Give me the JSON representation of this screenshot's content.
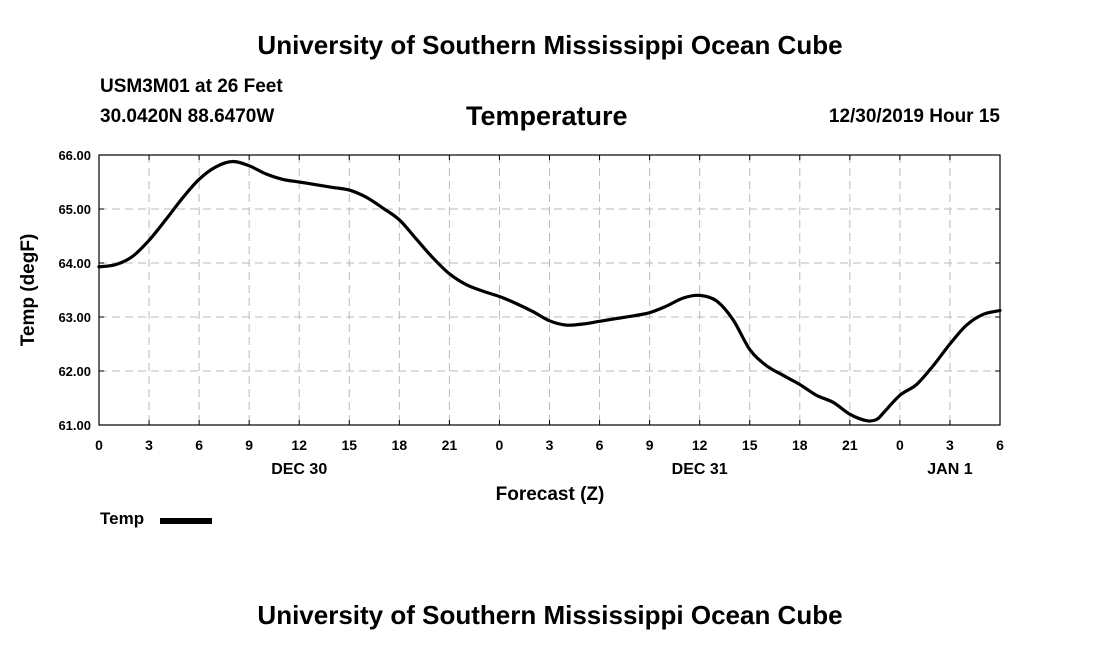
{
  "header": {
    "title": "University of Southern Mississippi Ocean Cube",
    "station": "USM3M01 at 26 Feet",
    "coordinates": "30.0420N 88.6470W",
    "run_time": "12/30/2019 Hour 15"
  },
  "footer": {
    "title": "University of Southern Mississippi Ocean Cube"
  },
  "chart_data": {
    "type": "line",
    "title": "Temperature",
    "xlabel": "Forecast (Z)",
    "ylabel": "Temp (degF)",
    "ylim": [
      61.0,
      66.0
    ],
    "xlim": [
      0,
      54
    ],
    "y_ticks": [
      "61.00",
      "62.00",
      "63.00",
      "64.00",
      "65.00",
      "66.00"
    ],
    "x_ticks": [
      "0",
      "3",
      "6",
      "9",
      "12",
      "15",
      "18",
      "21",
      "0",
      "3",
      "6",
      "9",
      "12",
      "15",
      "18",
      "21",
      "0",
      "3",
      "6"
    ],
    "date_labels": [
      {
        "label": "DEC 30",
        "hour": 12
      },
      {
        "label": "DEC 31",
        "hour": 36
      },
      {
        "label": "JAN 1",
        "hour": 51
      }
    ],
    "grid": true,
    "legend": {
      "label": "Temp",
      "placement": "bottom-left"
    },
    "series": [
      {
        "name": "Temp",
        "color": "#000000",
        "x": [
          0,
          1,
          2,
          3,
          4,
          5,
          6,
          7,
          8,
          9,
          10,
          11,
          12,
          13,
          14,
          15,
          16,
          17,
          18,
          19,
          20,
          21,
          22,
          23,
          24,
          25,
          26,
          27,
          28,
          29,
          30,
          31,
          32,
          33,
          34,
          35,
          36,
          37,
          38,
          39,
          40,
          41,
          42,
          43,
          44,
          45,
          46,
          46.6,
          47,
          48,
          49,
          50,
          51,
          52,
          53,
          54
        ],
        "values": [
          63.93,
          63.97,
          64.12,
          64.42,
          64.8,
          65.2,
          65.55,
          65.78,
          65.88,
          65.8,
          65.65,
          65.55,
          65.5,
          65.45,
          65.4,
          65.35,
          65.22,
          65.02,
          64.8,
          64.45,
          64.1,
          63.8,
          63.6,
          63.48,
          63.38,
          63.25,
          63.1,
          62.93,
          62.85,
          62.87,
          62.92,
          62.97,
          63.02,
          63.08,
          63.2,
          63.35,
          63.4,
          63.3,
          62.95,
          62.4,
          62.1,
          61.92,
          61.75,
          61.55,
          61.42,
          61.2,
          61.08,
          61.1,
          61.22,
          61.55,
          61.75,
          62.1,
          62.5,
          62.85,
          63.05,
          63.12
        ]
      }
    ]
  }
}
